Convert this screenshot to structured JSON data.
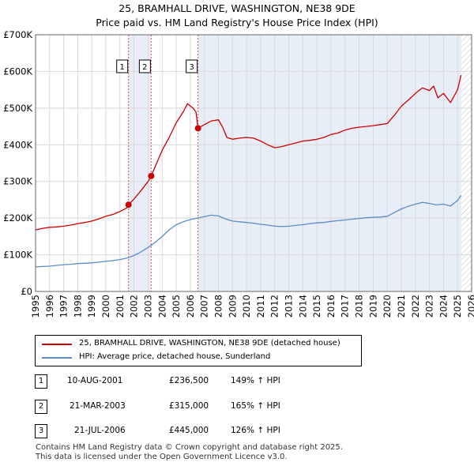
{
  "title": "25, BRAMHALL DRIVE, WASHINGTON, NE38 9DE",
  "subtitle": "Price paid vs. HM Land Registry's House Price Index (HPI)",
  "colors": {
    "price_line": "#cc0000",
    "hpi_line": "#5b8cc8",
    "shade": "#e8eef8",
    "grid": "#d8d8d8",
    "marker_line": "#e05050"
  },
  "chart_data": {
    "type": "line",
    "ylim": [
      0,
      700000
    ],
    "xlim": [
      1995,
      2026
    ],
    "y_ticks": [
      0,
      100000,
      200000,
      300000,
      400000,
      500000,
      600000,
      700000
    ],
    "y_tick_labels": [
      "£0",
      "£100K",
      "£200K",
      "£300K",
      "£400K",
      "£500K",
      "£600K",
      "£700K"
    ],
    "x_ticks": [
      "1995",
      "1996",
      "1997",
      "1998",
      "1999",
      "2000",
      "2001",
      "2002",
      "2003",
      "2004",
      "2005",
      "2006",
      "2007",
      "2008",
      "2009",
      "2010",
      "2011",
      "2012",
      "2013",
      "2014",
      "2015",
      "2016",
      "2017",
      "2018",
      "2019",
      "2020",
      "2021",
      "2022",
      "2023",
      "2024",
      "2025",
      "2026"
    ],
    "data_end": 2025.25,
    "grid": true,
    "series": [
      {
        "name": "25, BRAMHALL DRIVE, WASHINGTON, NE38 9DE (detached house)",
        "color": "#cc0000",
        "x": [
          1995.0,
          1995.5,
          1996.0,
          1996.5,
          1997.0,
          1997.5,
          1998.0,
          1998.5,
          1999.0,
          1999.5,
          2000.0,
          2000.5,
          2001.0,
          2001.5,
          2001.61,
          2002.0,
          2002.5,
          2003.0,
          2003.22,
          2003.5,
          2004.0,
          2004.5,
          2005.0,
          2005.5,
          2005.8,
          2006.2,
          2006.4,
          2006.55,
          2007.0,
          2007.5,
          2008.0,
          2008.3,
          2008.6,
          2009.0,
          2009.5,
          2010.0,
          2010.5,
          2011.0,
          2011.5,
          2012.0,
          2012.5,
          2013.0,
          2013.5,
          2014.0,
          2014.5,
          2015.0,
          2015.5,
          2016.0,
          2016.5,
          2017.0,
          2017.5,
          2018.0,
          2018.5,
          2019.0,
          2019.5,
          2020.0,
          2020.5,
          2021.0,
          2021.5,
          2022.0,
          2022.5,
          2023.0,
          2023.3,
          2023.6,
          2024.0,
          2024.5,
          2025.0,
          2025.25
        ],
        "values": [
          168000,
          172000,
          175000,
          176000,
          178000,
          181000,
          185000,
          188000,
          192000,
          198000,
          205000,
          210000,
          218000,
          228000,
          236500,
          252000,
          275000,
          300000,
          315000,
          340000,
          385000,
          420000,
          460000,
          490000,
          512000,
          500000,
          490000,
          445000,
          455000,
          465000,
          468000,
          448000,
          420000,
          415000,
          418000,
          420000,
          418000,
          410000,
          400000,
          392000,
          395000,
          400000,
          405000,
          410000,
          412000,
          415000,
          420000,
          428000,
          432000,
          440000,
          445000,
          448000,
          450000,
          452000,
          455000,
          458000,
          480000,
          505000,
          522000,
          540000,
          555000,
          548000,
          560000,
          528000,
          540000,
          515000,
          550000,
          590000
        ]
      },
      {
        "name": "HPI: Average price, detached house, Sunderland",
        "color": "#5b8cc8",
        "x": [
          1995.0,
          1995.5,
          1996.0,
          1996.5,
          1997.0,
          1997.5,
          1998.0,
          1998.5,
          1999.0,
          1999.5,
          2000.0,
          2000.5,
          2001.0,
          2001.5,
          2002.0,
          2002.5,
          2003.0,
          2003.5,
          2004.0,
          2004.5,
          2005.0,
          2005.5,
          2006.0,
          2006.5,
          2007.0,
          2007.5,
          2008.0,
          2008.5,
          2009.0,
          2009.5,
          2010.0,
          2010.5,
          2011.0,
          2011.5,
          2012.0,
          2012.5,
          2013.0,
          2013.5,
          2014.0,
          2014.5,
          2015.0,
          2015.5,
          2016.0,
          2016.5,
          2017.0,
          2017.5,
          2018.0,
          2018.5,
          2019.0,
          2019.5,
          2020.0,
          2020.5,
          2021.0,
          2021.5,
          2022.0,
          2022.5,
          2023.0,
          2023.5,
          2024.0,
          2024.5,
          2025.0,
          2025.25
        ],
        "values": [
          67000,
          68000,
          69000,
          71000,
          73000,
          74000,
          76000,
          77000,
          78000,
          80000,
          82000,
          84000,
          87000,
          91000,
          98000,
          108000,
          120000,
          134000,
          150000,
          168000,
          182000,
          190000,
          196000,
          200000,
          204000,
          208000,
          206000,
          198000,
          192000,
          190000,
          188000,
          186000,
          183000,
          181000,
          178000,
          177000,
          178000,
          180000,
          182000,
          185000,
          187000,
          188000,
          191000,
          193000,
          195000,
          197000,
          199000,
          201000,
          202000,
          203000,
          205000,
          215000,
          225000,
          232000,
          238000,
          243000,
          240000,
          236000,
          238000,
          233000,
          248000,
          262000
        ]
      }
    ],
    "transactions": [
      {
        "label": "1",
        "x": 2001.61,
        "price": 236500,
        "date": "10-AUG-2001",
        "price_text": "£236,500",
        "hpi_text": "149% ↑ HPI"
      },
      {
        "label": "2",
        "x": 2003.22,
        "price": 315000,
        "date": "21-MAR-2003",
        "price_text": "£315,000",
        "hpi_text": "165% ↑ HPI"
      },
      {
        "label": "3",
        "x": 2006.55,
        "price": 445000,
        "date": "21-JUL-2006",
        "price_text": "£445,000",
        "hpi_text": "126% ↑ HPI"
      }
    ]
  },
  "legend": {
    "price_label": "25, BRAMHALL DRIVE, WASHINGTON, NE38 9DE (detached house)",
    "hpi_label": "HPI: Average price, detached house, Sunderland"
  },
  "table": [
    {
      "num": "1",
      "date": "10-AUG-2001",
      "price": "£236,500",
      "hpi": "149% ↑ HPI"
    },
    {
      "num": "2",
      "date": "21-MAR-2003",
      "price": "£315,000",
      "hpi": "165% ↑ HPI"
    },
    {
      "num": "3",
      "date": "21-JUL-2006",
      "price": "£445,000",
      "hpi": "126% ↑ HPI"
    }
  ],
  "footer": {
    "line1": "Contains HM Land Registry data © Crown copyright and database right 2025.",
    "line2": "This data is licensed under the Open Government Licence v3.0."
  }
}
